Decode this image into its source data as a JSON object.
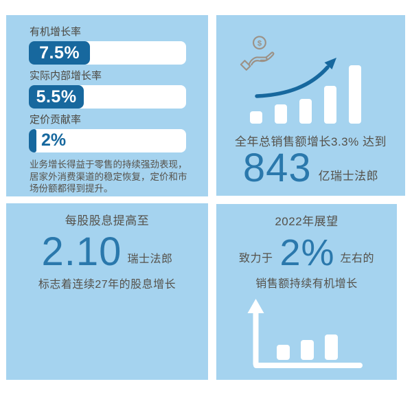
{
  "colors": {
    "panel_bg": "#a5d3ef",
    "bar_fill_blue": "#17689e",
    "accent_number_blue": "#2a78ac",
    "text_gray": "#55514a",
    "icon_taupe": "#9c9186",
    "white": "#ffffff"
  },
  "panels": {
    "growth": {
      "bars": [
        {
          "label": "有机增长率",
          "value": "7.5%"
        },
        {
          "label": "实际内部增长率",
          "value": "5.5%"
        },
        {
          "label": "定价贡献率",
          "value": "2%"
        }
      ],
      "note": "业务增长得益于零售的持续强劲表现，居家外消费渠道的稳定恢复，定价和市场份额都得到提升。"
    },
    "sales": {
      "coin_symbol": "$",
      "caption": "全年总销售额增长3.3%  达到",
      "big_number": "843",
      "unit": "亿瑞士法郎"
    },
    "dividend": {
      "heading": "每股股息提高至",
      "big_number": "2.10",
      "unit": "瑞士法郎",
      "subtext": "标志着连续27年的股息增长"
    },
    "outlook": {
      "heading": "2022年展望",
      "prefix": "致力于",
      "big_number": "2%",
      "suffix": "左右的",
      "subtext": "销售额持续有机增长"
    }
  },
  "chart_data": [
    {
      "type": "bar",
      "orientation": "horizontal",
      "title": "增长率指标",
      "categories": [
        "有机增长率",
        "实际内部增长率",
        "定价贡献率"
      ],
      "values": [
        7.5,
        5.5,
        2
      ],
      "unit": "%",
      "annotation": "业务增长得益于零售的持续强劲表现，居家外消费渠道的稳定恢复，定价和市场份额都得到提升。"
    },
    {
      "type": "bar",
      "title": "全年总销售额增长3.3% 达到 843 亿瑞士法郎",
      "categories": [
        "1",
        "2",
        "3",
        "4",
        "5"
      ],
      "values": [
        18,
        28,
        36,
        55,
        85
      ],
      "note": "装饰性上升柱形与趋势箭头，无坐标轴刻度，数值为相对高度"
    },
    {
      "type": "bar",
      "title": "2022年展望：致力于2%左右的销售额持续有机增长",
      "categories": [
        "1",
        "2",
        "3"
      ],
      "values": [
        22,
        29,
        37
      ],
      "note": "装饰性上升柱形与向上箭头坐标轴，无刻度，数值为相对高度"
    }
  ]
}
